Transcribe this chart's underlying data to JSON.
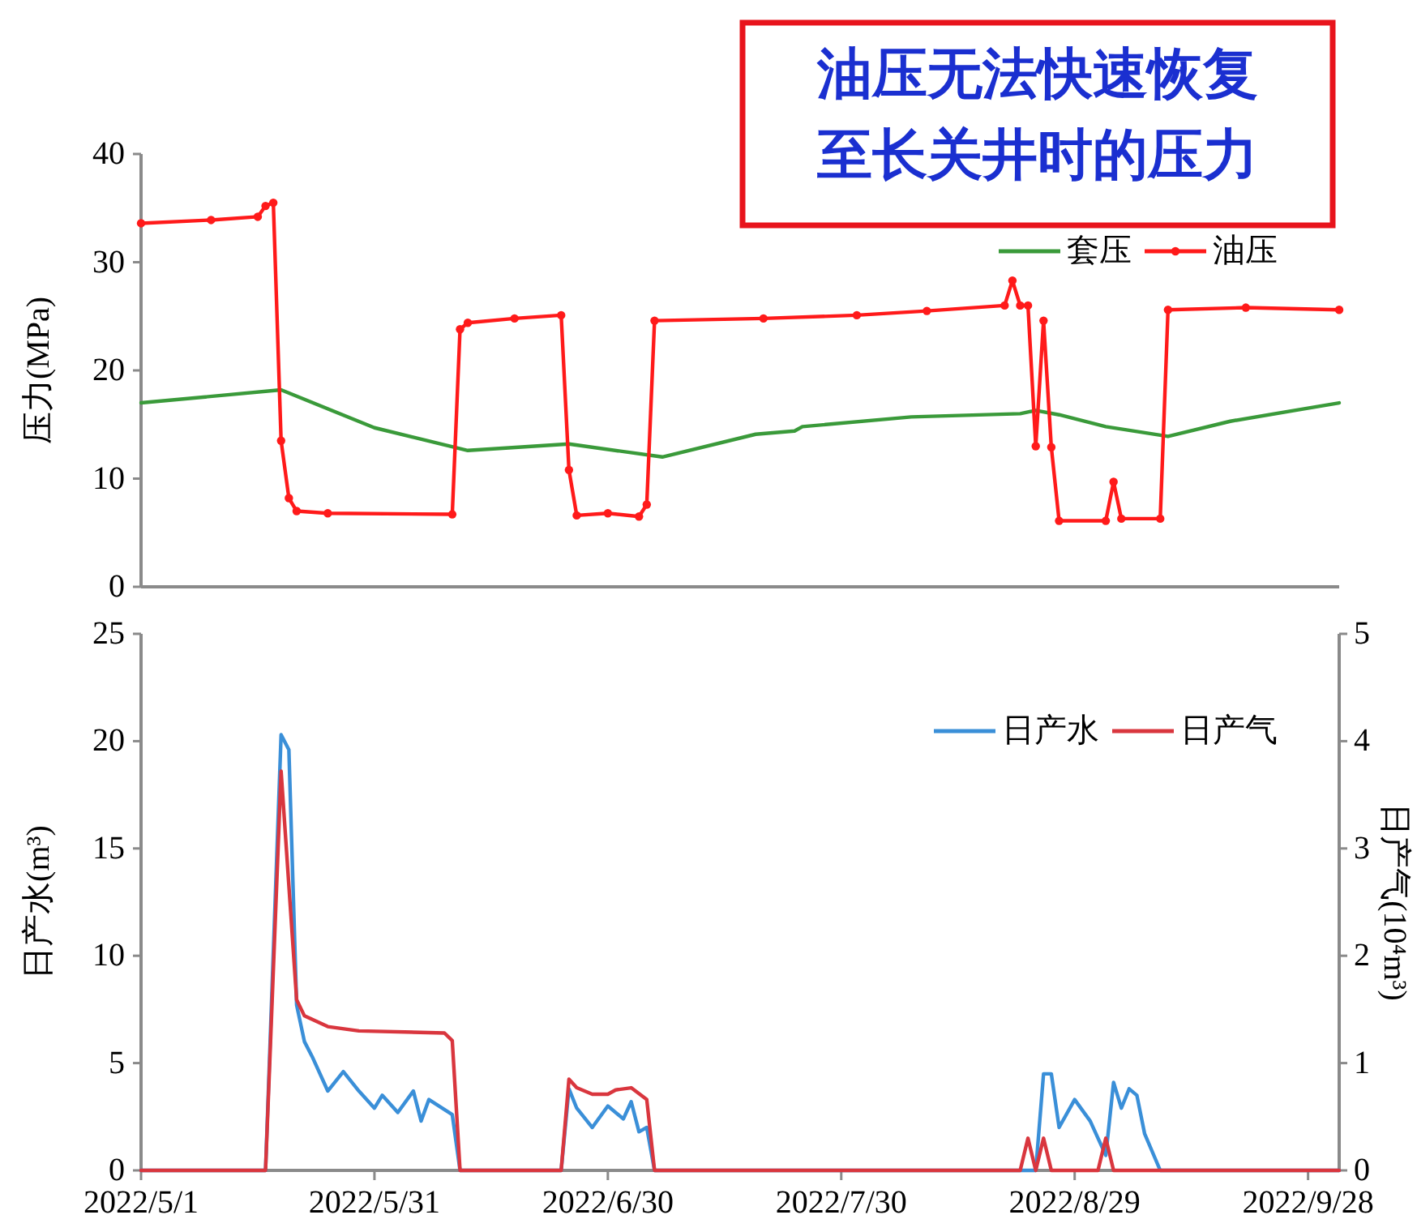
{
  "chart_data": [
    {
      "type": "line",
      "ylabel": "压力(MPa)",
      "xlim": [
        "2022-05-01",
        "2022-10-02"
      ],
      "ylim": [
        0,
        40
      ],
      "yticks": [
        0,
        10,
        20,
        30,
        40
      ],
      "tick_labels": "y",
      "legend": "top right",
      "annotations": [
        "油压无法快速恢复至长关井时的压力"
      ],
      "series": [
        {
          "name": "套压",
          "color": "#3a9a3a",
          "marker": "none",
          "x": [
            "2022-05-01",
            "2022-05-19",
            "2022-05-31",
            "2022-06-12",
            "2022-06-25",
            "2022-07-07",
            "2022-07-19",
            "2022-07-24",
            "2022-07-25",
            "2022-08-08",
            "2022-08-22",
            "2022-08-24",
            "2022-08-27",
            "2022-09-02",
            "2022-09-10",
            "2022-09-18",
            "2022-10-02"
          ],
          "values": [
            17.0,
            18.2,
            14.7,
            12.6,
            13.2,
            12.0,
            14.1,
            14.4,
            14.8,
            15.7,
            16.0,
            16.3,
            15.9,
            14.8,
            13.9,
            15.3,
            17.0
          ]
        },
        {
          "name": "油压",
          "color": "#ff1a1a",
          "marker": "circle",
          "x": [
            "2022-05-01",
            "2022-05-10",
            "2022-05-16",
            "2022-05-17",
            "2022-05-18",
            "2022-05-19",
            "2022-05-20",
            "2022-05-21",
            "2022-05-25",
            "2022-06-10",
            "2022-06-11",
            "2022-06-12",
            "2022-06-18",
            "2022-06-24",
            "2022-06-25",
            "2022-06-26",
            "2022-06-30",
            "2022-07-04",
            "2022-07-05",
            "2022-07-06",
            "2022-07-20",
            "2022-08-01",
            "2022-08-10",
            "2022-08-20",
            "2022-08-21",
            "2022-08-22",
            "2022-08-23",
            "2022-08-24",
            "2022-08-25",
            "2022-08-26",
            "2022-08-27",
            "2022-09-02",
            "2022-09-03",
            "2022-09-04",
            "2022-09-09",
            "2022-09-10",
            "2022-09-20",
            "2022-10-02"
          ],
          "values": [
            33.6,
            33.9,
            34.2,
            35.2,
            35.5,
            13.5,
            8.2,
            7.0,
            6.8,
            6.7,
            23.8,
            24.4,
            24.8,
            25.1,
            10.8,
            6.6,
            6.8,
            6.5,
            7.6,
            24.6,
            24.8,
            25.1,
            25.5,
            26.0,
            28.3,
            26.0,
            26.0,
            13.0,
            24.6,
            12.9,
            6.1,
            6.1,
            9.7,
            6.3,
            6.3,
            25.6,
            25.8,
            25.6
          ]
        }
      ]
    },
    {
      "type": "line",
      "ylabel": "日产水(m³)",
      "y2label": "日产气(10⁴m³)",
      "xlim": [
        "2022-05-01",
        "2022-10-02"
      ],
      "xticks": [
        {
          "value": "2022-05-01",
          "label": "2022/5/1"
        },
        {
          "value": "2022-05-31",
          "label": "2022/5/31"
        },
        {
          "value": "2022-06-30",
          "label": "2022/6/30"
        },
        {
          "value": "2022-07-30",
          "label": "2022/7/30"
        },
        {
          "value": "2022-08-29",
          "label": "2022/8/29"
        },
        {
          "value": "2022-09-28",
          "label": "2022/9/28"
        }
      ],
      "ylim": [
        0,
        25
      ],
      "yticks": [
        0,
        5,
        10,
        15,
        20,
        25
      ],
      "y2lim": [
        0,
        5
      ],
      "y2ticks": [
        0,
        1,
        2,
        3,
        4,
        5
      ],
      "legend": "top right",
      "series": [
        {
          "name": "日产水",
          "color": "#3a8fd8",
          "x": [
            "2022-05-01",
            "2022-05-17",
            "2022-05-19",
            "2022-05-20",
            "2022-05-21",
            "2022-05-22",
            "2022-05-23",
            "2022-05-25",
            "2022-05-27",
            "2022-05-29",
            "2022-05-31",
            "2022-06-01",
            "2022-06-03",
            "2022-06-05",
            "2022-06-06",
            "2022-06-07",
            "2022-06-10",
            "2022-06-11",
            "2022-06-24",
            "2022-06-25",
            "2022-06-26",
            "2022-06-28",
            "2022-06-30",
            "2022-07-02",
            "2022-07-03",
            "2022-07-04",
            "2022-07-05",
            "2022-07-06",
            "2022-08-24",
            "2022-08-25",
            "2022-08-26",
            "2022-08-27",
            "2022-08-29",
            "2022-08-31",
            "2022-09-02",
            "2022-09-03",
            "2022-09-04",
            "2022-09-05",
            "2022-09-06",
            "2022-09-07",
            "2022-09-09",
            "2022-10-02"
          ],
          "values": [
            0,
            0,
            20.3,
            19.6,
            7.7,
            6.0,
            5.3,
            3.7,
            4.6,
            3.7,
            2.9,
            3.5,
            2.7,
            3.7,
            2.3,
            3.3,
            2.6,
            0,
            0,
            3.8,
            2.9,
            2.0,
            3.0,
            2.4,
            3.2,
            1.8,
            2.0,
            0,
            0,
            4.5,
            4.5,
            2.0,
            3.3,
            2.3,
            0.7,
            4.1,
            2.9,
            3.8,
            3.5,
            1.7,
            0,
            0
          ]
        },
        {
          "name": "日产气",
          "color": "#d9363e",
          "axis": "y2",
          "x": [
            "2022-05-01",
            "2022-05-17",
            "2022-05-19",
            "2022-05-21",
            "2022-05-22",
            "2022-05-25",
            "2022-05-29",
            "2022-06-09",
            "2022-06-10",
            "2022-06-11",
            "2022-06-24",
            "2022-06-25",
            "2022-06-26",
            "2022-06-28",
            "2022-06-30",
            "2022-07-01",
            "2022-07-03",
            "2022-07-05",
            "2022-07-06",
            "2022-08-22",
            "2022-08-23",
            "2022-08-24",
            "2022-08-25",
            "2022-08-26",
            "2022-09-01",
            "2022-09-02",
            "2022-09-03",
            "2022-10-02"
          ],
          "values": [
            0,
            0,
            3.72,
            1.59,
            1.44,
            1.34,
            1.3,
            1.28,
            1.21,
            0,
            0,
            0.85,
            0.77,
            0.71,
            0.71,
            0.75,
            0.77,
            0.66,
            0,
            0,
            0.3,
            0,
            0.3,
            0,
            0,
            0.3,
            0,
            0
          ]
        }
      ]
    }
  ]
}
